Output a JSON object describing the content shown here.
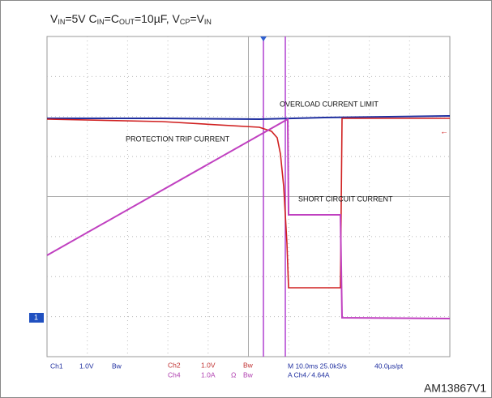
{
  "header": {
    "title": [
      {
        "text": "V"
      },
      {
        "text": "IN",
        "sub": true
      },
      {
        "text": "=5V C"
      },
      {
        "text": "IN",
        "sub": true
      },
      {
        "text": "=C"
      },
      {
        "text": "OUT",
        "sub": true
      },
      {
        "text": "=10µF, V"
      },
      {
        "text": "CP",
        "sub": true
      },
      {
        "text": "=V"
      },
      {
        "text": "IN",
        "sub": true
      }
    ]
  },
  "annotations": {
    "overload": "OVERLOAD CURRENT LIMIT",
    "trip": "PROTECTION TRIP CURRENT",
    "short": "SHORT CIRCUIT CURRENT"
  },
  "marker": "1",
  "footer": {
    "ch1": {
      "name": "Ch1",
      "scale": "1.0V",
      "bw": "Bw"
    },
    "ch2": {
      "name": "Ch2",
      "scale": "1.0V",
      "bw": "Bw"
    },
    "ch4": {
      "name": "Ch4",
      "scale": "1.0A",
      "ohm": "Ω",
      "bw": "Bw"
    },
    "timebase": "M 10.0ms 25.0kS/s",
    "rate": "40.0µs/pt",
    "trigger": "A Ch4 ⁄ 4.64A"
  },
  "figure_id": "AM13867V1"
}
